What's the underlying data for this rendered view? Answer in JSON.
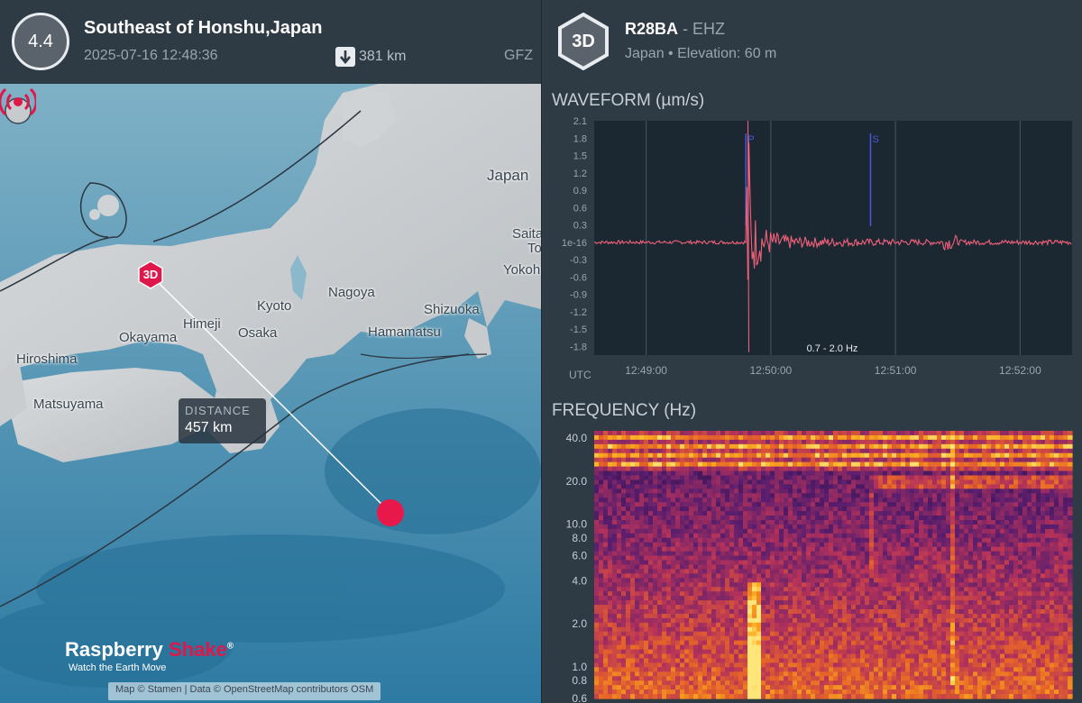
{
  "event": {
    "magnitude": "4.4",
    "title": "Southeast of Honshu,Japan",
    "time": "2025-07-16 12:48:36",
    "depth": "381 km",
    "agency": "GFZ"
  },
  "map": {
    "cities": [
      {
        "name": "Japan",
        "id": "japan"
      },
      {
        "name": "Kyoto",
        "id": "kyoto"
      },
      {
        "name": "Nagoya",
        "id": "nagoya"
      },
      {
        "name": "Himeji",
        "id": "himeji"
      },
      {
        "name": "Osaka",
        "id": "osaka"
      },
      {
        "name": "Okayama",
        "id": "okayama"
      },
      {
        "name": "Hiroshima",
        "id": "hiroshima"
      },
      {
        "name": "Matsuyama",
        "id": "matsuyama"
      },
      {
        "name": "Shizuoka",
        "id": "shizuoka"
      },
      {
        "name": "Hamamatsu",
        "id": "hamamatsu"
      },
      {
        "name": "Yokoh",
        "id": "yokohama"
      },
      {
        "name": "Saita",
        "id": "saitama"
      },
      {
        "name": "To",
        "id": "tokyo"
      }
    ],
    "distance_label": "DISTANCE",
    "distance_value": "457 km",
    "station_marker": "3D",
    "brand_main": "Raspberry",
    "brand_accent": "Shake",
    "brand_reg": "®",
    "tagline": "Watch the Earth Move",
    "attribution": "Map © Stamen | Data © OpenStreetMap contributors  OSM"
  },
  "station": {
    "badge": "3D",
    "code": "R28BA",
    "separator": " - ",
    "channel": "EHZ",
    "subtitle": "Japan • Elevation: 60 m"
  },
  "waveform": {
    "title": "WAVEFORM (µm/s)",
    "utc_label": "UTC",
    "filter_label": "0.7 - 2.0 Hz",
    "phase_p": "P",
    "phase_s": "S",
    "colors": {
      "trace": "#f0607a",
      "bg": "#1b2731",
      "grid": "#4a5660",
      "phase": "#4a5ad8"
    }
  },
  "frequency": {
    "title": "FREQUENCY (Hz)"
  },
  "chart_data": [
    {
      "type": "line",
      "title": "WAVEFORM (µm/s)",
      "ylabel": "µm/s",
      "yticks": [
        "2.1",
        "1.8",
        "1.5",
        "1.2",
        "0.9",
        "0.6",
        "0.3",
        "1e-16",
        "-0.3",
        "-0.6",
        "-0.9",
        "-1.2",
        "-1.5",
        "-1.8"
      ],
      "ylim": [
        -1.95,
        2.1
      ],
      "xticks": [
        "12:49:00",
        "12:50:00",
        "12:51:00",
        "12:52:00"
      ],
      "xlim": [
        "12:48:35",
        "12:52:25"
      ],
      "phases": [
        {
          "name": "P",
          "time": "12:49:48"
        },
        {
          "name": "S",
          "time": "12:50:48"
        }
      ],
      "filter": "0.7 - 2.0 Hz",
      "series": [
        {
          "values": [
            {
              "t": "12:49:49",
              "v": 2.1
            },
            {
              "t": "12:49:50",
              "v": -1.9
            },
            {
              "t": "12:50:00",
              "v": 0.22
            },
            {
              "t": "12:50:50",
              "v": 0.1
            },
            {
              "t": "12:51:26",
              "v": 0.14
            },
            {
              "t": "12:52:00",
              "v": 0.03
            }
          ]
        }
      ]
    },
    {
      "type": "heatmap",
      "title": "FREQUENCY (Hz)",
      "ylabel": "Hz",
      "yscale": "log",
      "yticks": [
        "40.0",
        "20.0",
        "10.0",
        "8.0",
        "6.0",
        "4.0",
        "2.0",
        "1.0",
        "0.8",
        "0.6"
      ],
      "ylim": [
        0.6,
        45
      ]
    }
  ]
}
